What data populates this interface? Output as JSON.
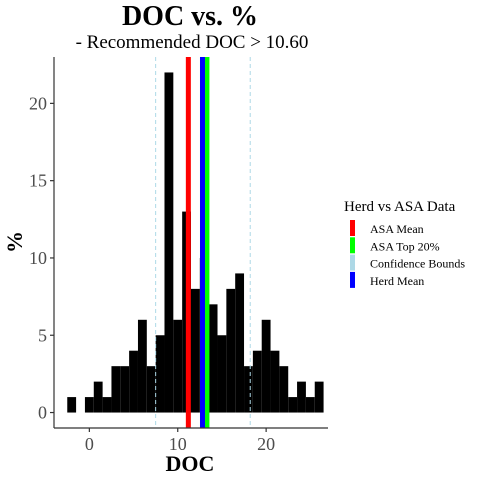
{
  "chart_data": {
    "type": "histogram",
    "title": "DOC  vs.  %",
    "subtitle": "- Recommended  DOC > 10.60",
    "xlabel": "DOC",
    "ylabel": "%",
    "xlim": [
      -4,
      27
    ],
    "ylim": [
      -1,
      23
    ],
    "x_ticks": [
      0,
      10,
      20
    ],
    "y_ticks": [
      0,
      5,
      10,
      15,
      20
    ],
    "bin_width": 1,
    "bins": [
      {
        "x": -2,
        "count": 1
      },
      {
        "x": -1,
        "count": 0
      },
      {
        "x": 0,
        "count": 1
      },
      {
        "x": 1,
        "count": 2
      },
      {
        "x": 2,
        "count": 1
      },
      {
        "x": 3,
        "count": 3
      },
      {
        "x": 4,
        "count": 3
      },
      {
        "x": 5,
        "count": 4
      },
      {
        "x": 6,
        "count": 6
      },
      {
        "x": 7,
        "count": 3
      },
      {
        "x": 8,
        "count": 5
      },
      {
        "x": 9,
        "count": 22
      },
      {
        "x": 10,
        "count": 6
      },
      {
        "x": 11,
        "count": 13
      },
      {
        "x": 12,
        "count": 8
      },
      {
        "x": 13,
        "count": 10
      },
      {
        "x": 14,
        "count": 7
      },
      {
        "x": 15,
        "count": 5
      },
      {
        "x": 16,
        "count": 8
      },
      {
        "x": 17,
        "count": 9
      },
      {
        "x": 18,
        "count": 3
      },
      {
        "x": 19,
        "count": 4
      },
      {
        "x": 20,
        "count": 6
      },
      {
        "x": 21,
        "count": 4
      },
      {
        "x": 22,
        "count": 3
      },
      {
        "x": 23,
        "count": 1
      },
      {
        "x": 24,
        "count": 2
      },
      {
        "x": 25,
        "count": 1
      },
      {
        "x": 26,
        "count": 2
      }
    ],
    "vlines": [
      {
        "name": "Confidence Bounds",
        "x": 7.5,
        "color": "#add8e6",
        "style": "dashed"
      },
      {
        "name": "Confidence Bounds",
        "x": 18.2,
        "color": "#add8e6",
        "style": "dashed"
      },
      {
        "name": "ASA Mean",
        "x": 11.2,
        "color": "#ff0000",
        "style": "solid"
      },
      {
        "name": "ASA Top 20%",
        "x": 13.3,
        "color": "#00ff00",
        "style": "solid"
      },
      {
        "name": "Herd Mean",
        "x": 12.8,
        "color": "#0000ff",
        "style": "solid"
      }
    ],
    "legend": {
      "title": "Herd vs ASA Data",
      "position": "right",
      "items": [
        {
          "label": "ASA Mean",
          "color": "#ff0000"
        },
        {
          "label": "ASA Top 20%",
          "color": "#00ff00"
        },
        {
          "label": "Confidence Bounds",
          "color": "#add8e6"
        },
        {
          "label": "Herd Mean",
          "color": "#0000ff"
        }
      ]
    },
    "grid": false
  }
}
